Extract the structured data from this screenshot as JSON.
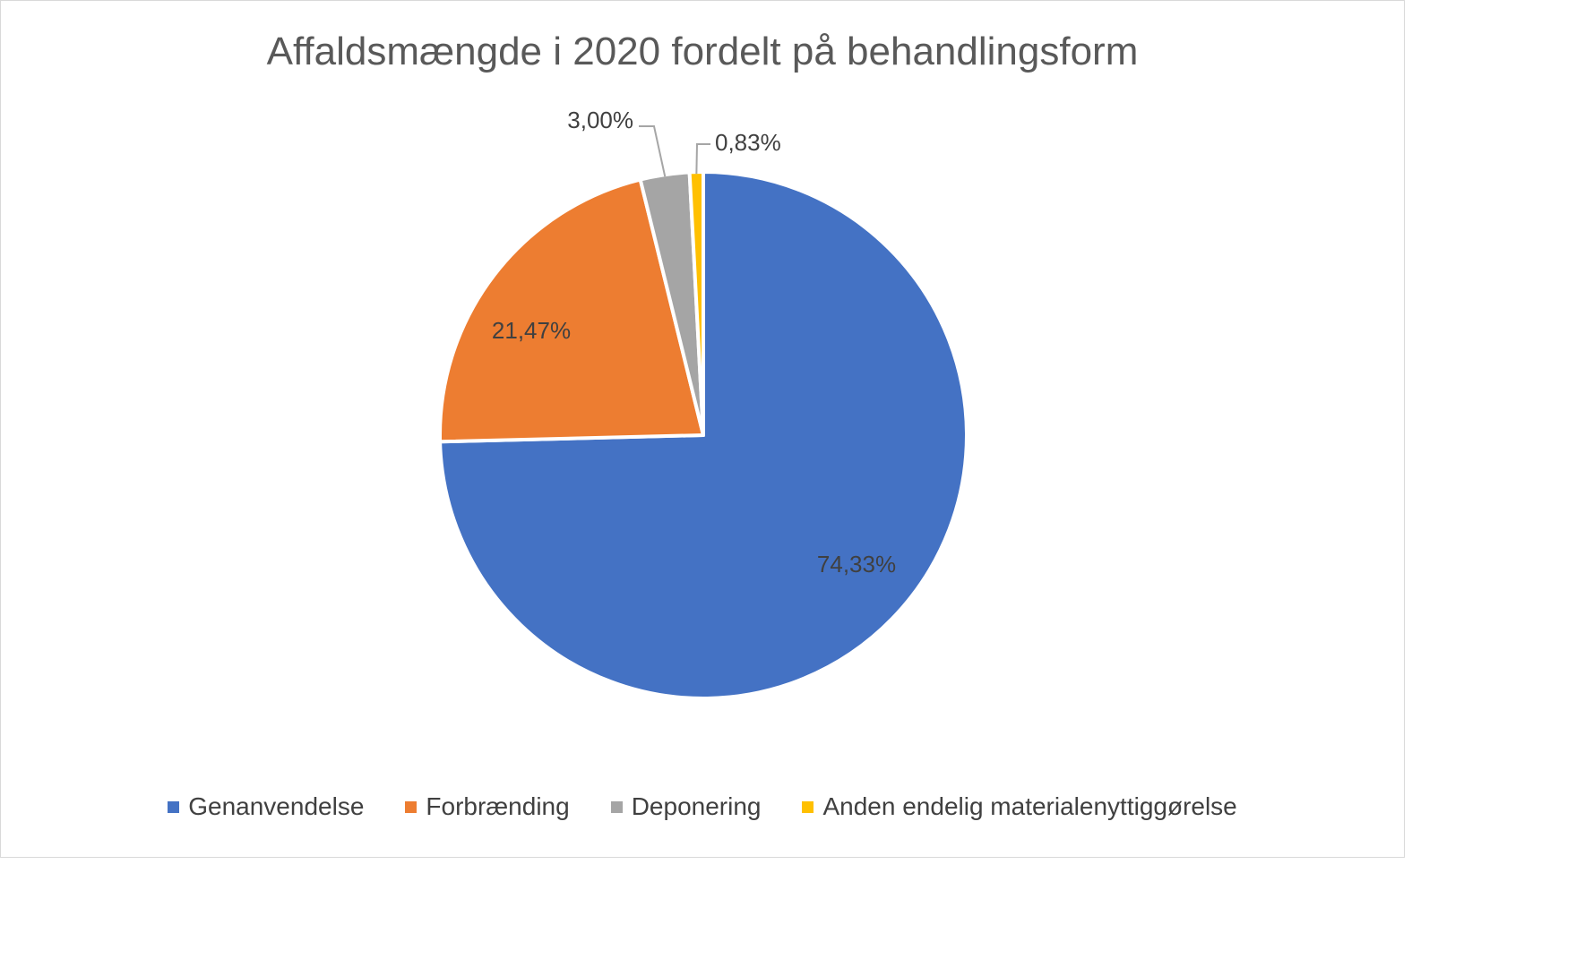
{
  "chart_data": {
    "type": "pie",
    "title": "Affaldsmængde i 2020 fordelt på behandlingsform",
    "categories": [
      "Genanvendelse",
      "Forbrænding",
      "Deponering",
      "Anden endelig materialenyttiggørelse"
    ],
    "values": [
      74.33,
      21.47,
      3.0,
      0.83
    ],
    "data_labels": [
      "74,33%",
      "21,47%",
      "3,00%",
      "0,83%"
    ],
    "colors": [
      "#4472C4",
      "#ED7D31",
      "#A5A5A5",
      "#FFC000"
    ],
    "legend_position": "bottom",
    "start_angle": "12 o'clock, clockwise"
  }
}
